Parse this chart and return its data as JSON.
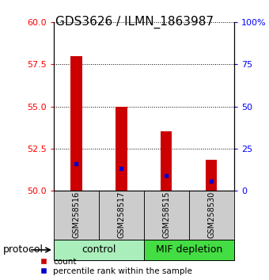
{
  "title": "GDS3626 / ILMN_1863987",
  "samples": [
    "GSM258516",
    "GSM258517",
    "GSM258515",
    "GSM258530"
  ],
  "bar_bottom": 50,
  "bar_tops": [
    58.0,
    55.0,
    53.5,
    51.8
  ],
  "percentile_values": [
    51.6,
    51.3,
    50.9,
    50.55
  ],
  "ylim": [
    50,
    60
  ],
  "yticks_left": [
    50,
    52.5,
    55,
    57.5,
    60
  ],
  "yticks_right_vals": [
    0,
    25,
    50,
    75,
    100
  ],
  "yticks_right_labels": [
    "0",
    "25",
    "50",
    "75",
    "100%"
  ],
  "bar_color": "#cc0000",
  "percentile_color": "#0000cc",
  "control_color": "#aaeebb",
  "depletion_color": "#44dd44",
  "sample_box_color": "#cccccc",
  "group_labels": [
    "control",
    "MIF depletion"
  ],
  "group_ranges": [
    [
      0,
      1
    ],
    [
      2,
      3
    ]
  ],
  "bar_width": 0.25,
  "title_fontsize": 11,
  "tick_fontsize": 8,
  "sample_label_fontsize": 7,
  "group_label_fontsize": 9,
  "legend_fontsize": 7.5
}
